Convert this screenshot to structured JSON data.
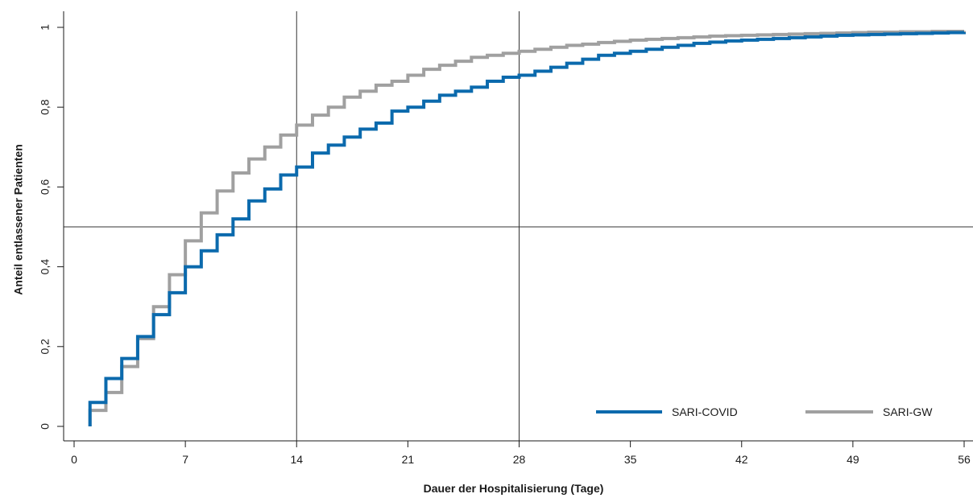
{
  "chart_data": {
    "type": "line",
    "step": true,
    "xlabel": "Dauer der Hospitalisierung (Tage)",
    "ylabel": "Anteil entlassener Patienten",
    "xlim": [
      0,
      56
    ],
    "ylim": [
      0,
      1
    ],
    "x_ticks": [
      0,
      7,
      14,
      21,
      28,
      35,
      42,
      49,
      56
    ],
    "x_tick_labels": [
      "0",
      "7",
      "14",
      "21",
      "28",
      "35",
      "42",
      "49",
      "56"
    ],
    "y_ticks": [
      0,
      0.2,
      0.4,
      0.6,
      0.8,
      1
    ],
    "y_tick_labels": [
      "0",
      "0,2",
      "0,4",
      "0,6",
      "0,8",
      "1"
    ],
    "reference_lines": {
      "vertical": [
        14,
        28
      ],
      "horizontal": [
        0.5
      ]
    },
    "legend": {
      "placement": "bottom-right"
    },
    "series": [
      {
        "name": "SARI-COVID",
        "color": "#0b6aad",
        "x": [
          1,
          2,
          3,
          4,
          5,
          6,
          7,
          8,
          9,
          10,
          11,
          12,
          13,
          14,
          15,
          16,
          17,
          18,
          19,
          20,
          21,
          22,
          23,
          24,
          25,
          26,
          27,
          28,
          29,
          30,
          31,
          32,
          33,
          34,
          35,
          36,
          37,
          38,
          39,
          40,
          41,
          42,
          43,
          44,
          45,
          46,
          47,
          48,
          49,
          50,
          51,
          52,
          53,
          54,
          55,
          56
        ],
        "values": [
          0.06,
          0.12,
          0.17,
          0.225,
          0.28,
          0.335,
          0.4,
          0.44,
          0.48,
          0.52,
          0.565,
          0.595,
          0.63,
          0.65,
          0.685,
          0.705,
          0.725,
          0.745,
          0.76,
          0.79,
          0.8,
          0.815,
          0.83,
          0.84,
          0.85,
          0.865,
          0.875,
          0.88,
          0.89,
          0.9,
          0.91,
          0.92,
          0.93,
          0.935,
          0.94,
          0.945,
          0.95,
          0.955,
          0.96,
          0.963,
          0.966,
          0.968,
          0.97,
          0.972,
          0.974,
          0.976,
          0.978,
          0.98,
          0.981,
          0.982,
          0.983,
          0.984,
          0.985,
          0.986,
          0.987,
          0.988
        ]
      },
      {
        "name": "SARI-GW",
        "color": "#a0a0a0",
        "x": [
          1,
          2,
          3,
          4,
          5,
          6,
          7,
          8,
          9,
          10,
          11,
          12,
          13,
          14,
          15,
          16,
          17,
          18,
          19,
          20,
          21,
          22,
          23,
          24,
          25,
          26,
          27,
          28,
          29,
          30,
          31,
          32,
          33,
          34,
          35,
          36,
          37,
          38,
          39,
          40,
          41,
          42,
          43,
          44,
          45,
          46,
          47,
          48,
          49,
          50,
          51,
          52,
          53,
          54,
          55,
          56
        ],
        "values": [
          0.04,
          0.085,
          0.15,
          0.22,
          0.3,
          0.38,
          0.465,
          0.535,
          0.59,
          0.635,
          0.67,
          0.7,
          0.73,
          0.755,
          0.78,
          0.8,
          0.825,
          0.84,
          0.855,
          0.865,
          0.88,
          0.895,
          0.905,
          0.915,
          0.925,
          0.93,
          0.935,
          0.94,
          0.945,
          0.95,
          0.955,
          0.958,
          0.962,
          0.965,
          0.968,
          0.97,
          0.972,
          0.974,
          0.976,
          0.978,
          0.979,
          0.98,
          0.981,
          0.982,
          0.983,
          0.984,
          0.985,
          0.986,
          0.987,
          0.988,
          0.988,
          0.989,
          0.989,
          0.99,
          0.99,
          0.991
        ]
      }
    ]
  }
}
